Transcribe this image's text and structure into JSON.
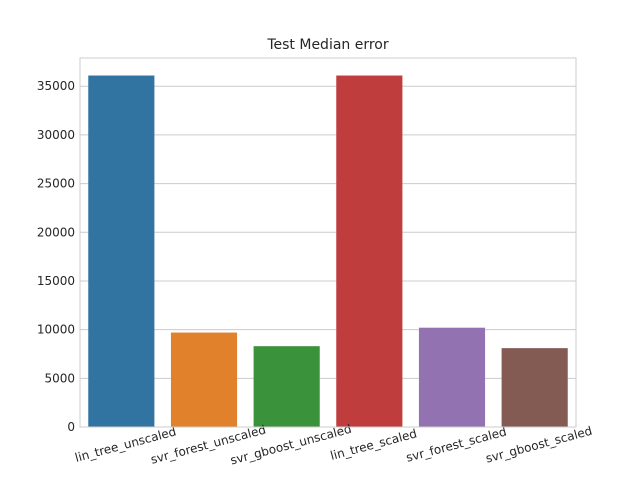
{
  "chart_data": {
    "type": "bar",
    "title": "Test Median error",
    "xlabel": "",
    "ylabel": "",
    "categories": [
      "lin_tree_unscaled",
      "svr_forest_unscaled",
      "svr_gboost_unscaled",
      "lin_tree_scaled",
      "svr_forest_scaled",
      "svr_gboost_scaled"
    ],
    "values": [
      36100,
      9700,
      8300,
      36100,
      10200,
      8100
    ],
    "colors": [
      "#3274a1",
      "#e1812c",
      "#3a923a",
      "#c03d3e",
      "#9372b2",
      "#845b53"
    ],
    "ylim": [
      0,
      37900
    ],
    "yticks": [
      0,
      5000,
      10000,
      15000,
      20000,
      25000,
      30000,
      35000
    ],
    "grid": "horizontal",
    "legend": "none"
  }
}
